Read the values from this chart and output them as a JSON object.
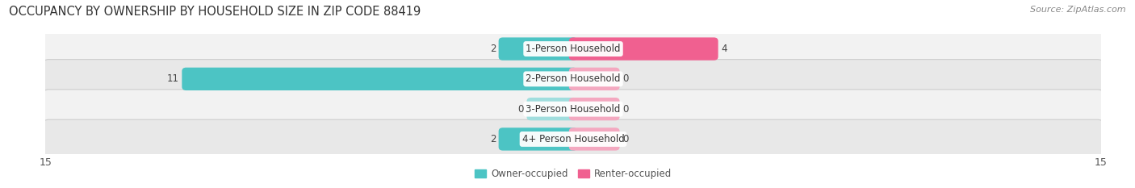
{
  "title": "OCCUPANCY BY OWNERSHIP BY HOUSEHOLD SIZE IN ZIP CODE 88419",
  "source": "Source: ZipAtlas.com",
  "categories": [
    "1-Person Household",
    "2-Person Household",
    "3-Person Household",
    "4+ Person Household"
  ],
  "owner_values": [
    2,
    11,
    0,
    2
  ],
  "renter_values": [
    4,
    0,
    0,
    0
  ],
  "owner_color": "#4cc4c4",
  "owner_stub_color": "#a0dede",
  "renter_color": "#f06090",
  "renter_stub_color": "#f4a8c0",
  "row_light": "#f2f2f2",
  "row_dark": "#e8e8e8",
  "row_border": "#d8d8d8",
  "xlim": 15,
  "stub_size": 1.2,
  "legend_owner": "Owner-occupied",
  "legend_renter": "Renter-occupied",
  "title_fontsize": 10.5,
  "source_fontsize": 8,
  "cat_fontsize": 8.5,
  "val_fontsize": 8.5,
  "tick_fontsize": 9,
  "legend_fontsize": 8.5
}
